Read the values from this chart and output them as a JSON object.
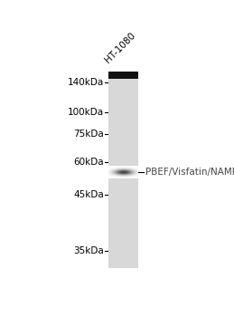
{
  "background_color": "#ffffff",
  "lane_label": "HT-1080",
  "lane_label_rotation": 45,
  "lane_label_fontsize": 7.5,
  "gel_bg_color": "#d8d8d8",
  "top_bar_color": "#111111",
  "band_label": "PBEF/Visfatin/NAMPT",
  "band_label_fontsize": 7.5,
  "mw_markers": [
    {
      "label": "140kDa",
      "kda": 140
    },
    {
      "label": "100kDa",
      "kda": 100
    },
    {
      "label": "75kDa",
      "kda": 75
    },
    {
      "label": "60kDa",
      "kda": 60
    },
    {
      "label": "45kDa",
      "kda": 45
    },
    {
      "label": "35kDa",
      "kda": 35
    }
  ],
  "band_kda": 55,
  "mw_fontsize": 7.5,
  "fig_width": 2.59,
  "fig_height": 3.5,
  "dpi": 100
}
